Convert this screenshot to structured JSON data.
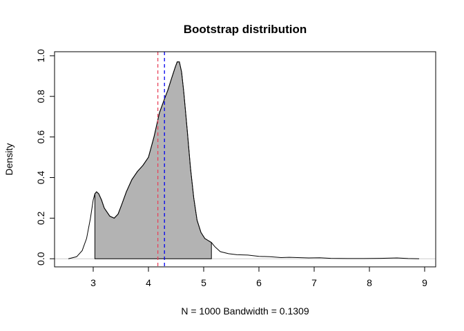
{
  "chart_data": {
    "type": "area",
    "title": "Bootstrap distribution",
    "xlabel": "N = 1000   Bandwidth = 0.1309",
    "ylabel": "Density",
    "xlim": [
      2.3,
      9.2
    ],
    "ylim": [
      -0.04,
      1.02
    ],
    "x_ticks": [
      3,
      4,
      5,
      6,
      7,
      8,
      9
    ],
    "x_tick_labels": [
      "3",
      "4",
      "5",
      "6",
      "7",
      "8",
      "9"
    ],
    "y_ticks": [
      0.0,
      0.2,
      0.4,
      0.6,
      0.8,
      1.0
    ],
    "y_tick_labels": [
      "0.0",
      "0.2",
      "0.4",
      "0.6",
      "0.8",
      "1.0"
    ],
    "grid": false,
    "legend": "none",
    "density_curve": {
      "x": [
        2.55,
        2.7,
        2.8,
        2.88,
        2.95,
        3.0,
        3.03,
        3.06,
        3.1,
        3.15,
        3.2,
        3.3,
        3.38,
        3.45,
        3.52,
        3.6,
        3.7,
        3.8,
        3.9,
        4.0,
        4.06,
        4.1,
        4.15,
        4.2,
        4.28,
        4.35,
        4.42,
        4.48,
        4.52,
        4.56,
        4.6,
        4.64,
        4.7,
        4.76,
        4.82,
        4.88,
        4.95,
        5.02,
        5.08,
        5.14,
        5.2,
        5.3,
        5.45,
        5.6,
        5.8,
        6.0,
        6.2,
        6.4,
        6.55,
        6.7,
        6.9,
        7.1,
        7.3,
        7.6,
        7.9,
        8.2,
        8.5,
        8.7,
        8.9
      ],
      "y": [
        0.0,
        0.01,
        0.04,
        0.1,
        0.2,
        0.29,
        0.32,
        0.33,
        0.32,
        0.29,
        0.25,
        0.21,
        0.2,
        0.22,
        0.27,
        0.33,
        0.39,
        0.43,
        0.46,
        0.5,
        0.56,
        0.6,
        0.66,
        0.72,
        0.78,
        0.83,
        0.89,
        0.94,
        0.97,
        0.97,
        0.92,
        0.82,
        0.64,
        0.45,
        0.3,
        0.19,
        0.13,
        0.1,
        0.09,
        0.08,
        0.06,
        0.035,
        0.025,
        0.02,
        0.018,
        0.012,
        0.01,
        0.006,
        0.007,
        0.006,
        0.004,
        0.005,
        0.002,
        0.001,
        0.001,
        0.002,
        0.004,
        0.001,
        0.0
      ]
    },
    "shaded_interval": [
      3.03,
      5.14
    ],
    "shade_color": "#b3b3b3",
    "vertical_lines": [
      {
        "x": 4.17,
        "color": "#e8435b",
        "style": "dashed"
      },
      {
        "x": 4.29,
        "color": "#0000ee",
        "style": "dashed"
      }
    ]
  }
}
